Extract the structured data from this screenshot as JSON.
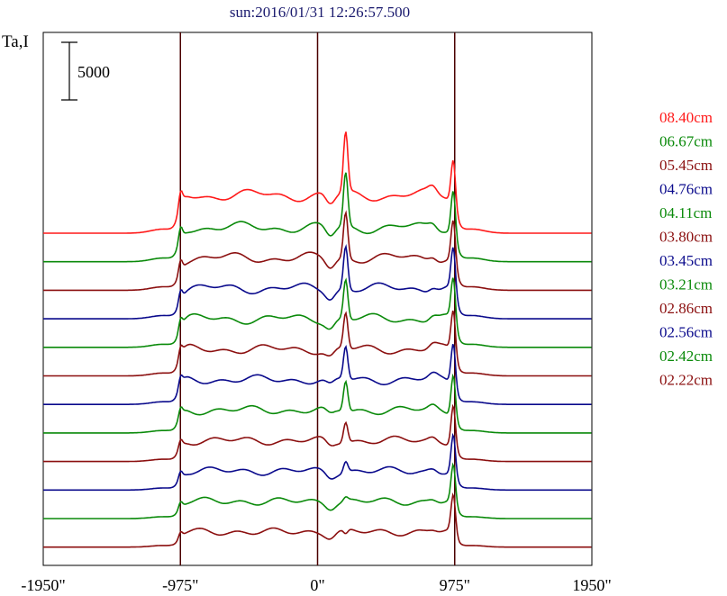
{
  "chart_data": {
    "type": "line",
    "title": "sun:2016/01/31 12:26:57.500",
    "ylabel": "Ta,I",
    "scale_bar_label": "5000",
    "scale_bar_value": 5000,
    "xlim": [
      -1950,
      1950
    ],
    "x_ticks": [
      -1950,
      -975,
      0,
      975,
      1950
    ],
    "x_tick_labels": [
      "-1950\"",
      "-975\"",
      "0\"",
      "975\"",
      "1950\""
    ],
    "vertical_lines": [
      -975,
      0,
      975
    ],
    "colors": {
      "red": "#ff1a1a",
      "green": "#0a8a0a",
      "darkred": "#8b0f0f",
      "navy": "#0a0a8c"
    },
    "series": [
      {
        "name": "08.40cm",
        "color": "#ff1a1a",
        "peak_0": 8500,
        "peak_975": 7200,
        "rise": 1.0
      },
      {
        "name": "06.67cm",
        "color": "#0a8a0a",
        "peak_0": 7600,
        "peak_975": 6900,
        "rise": 0.9
      },
      {
        "name": "05.45cm",
        "color": "#8b0f0f",
        "peak_0": 6800,
        "peak_975": 6600,
        "rise": 0.85
      },
      {
        "name": "04.76cm",
        "color": "#0a0a8c",
        "peak_0": 6400,
        "peak_975": 6500,
        "rise": 0.8
      },
      {
        "name": "04.11cm",
        "color": "#0a8a0a",
        "peak_0": 5900,
        "peak_975": 6300,
        "rise": 0.75
      },
      {
        "name": "03.80cm",
        "color": "#8b0f0f",
        "peak_0": 5400,
        "peak_975": 6100,
        "rise": 0.7
      },
      {
        "name": "03.45cm",
        "color": "#0a0a8c",
        "peak_0": 5000,
        "peak_975": 5900,
        "rise": 0.65
      },
      {
        "name": "03.21cm",
        "color": "#0a8a0a",
        "peak_0": 4600,
        "peak_975": 5700,
        "rise": 0.6
      },
      {
        "name": "02.86cm",
        "color": "#8b0f0f",
        "peak_0": 3600,
        "peak_975": 5400,
        "rise": 0.55
      },
      {
        "name": "02.56cm",
        "color": "#0a0a8c",
        "peak_0": 2600,
        "peak_975": 5100,
        "rise": 0.5
      },
      {
        "name": "02.42cm",
        "color": "#0a8a0a",
        "peak_0": 1800,
        "peak_975": 4800,
        "rise": 0.45
      },
      {
        "name": "02.22cm",
        "color": "#8b0f0f",
        "peak_0": 900,
        "peak_975": 4600,
        "rise": 0.4
      }
    ]
  }
}
